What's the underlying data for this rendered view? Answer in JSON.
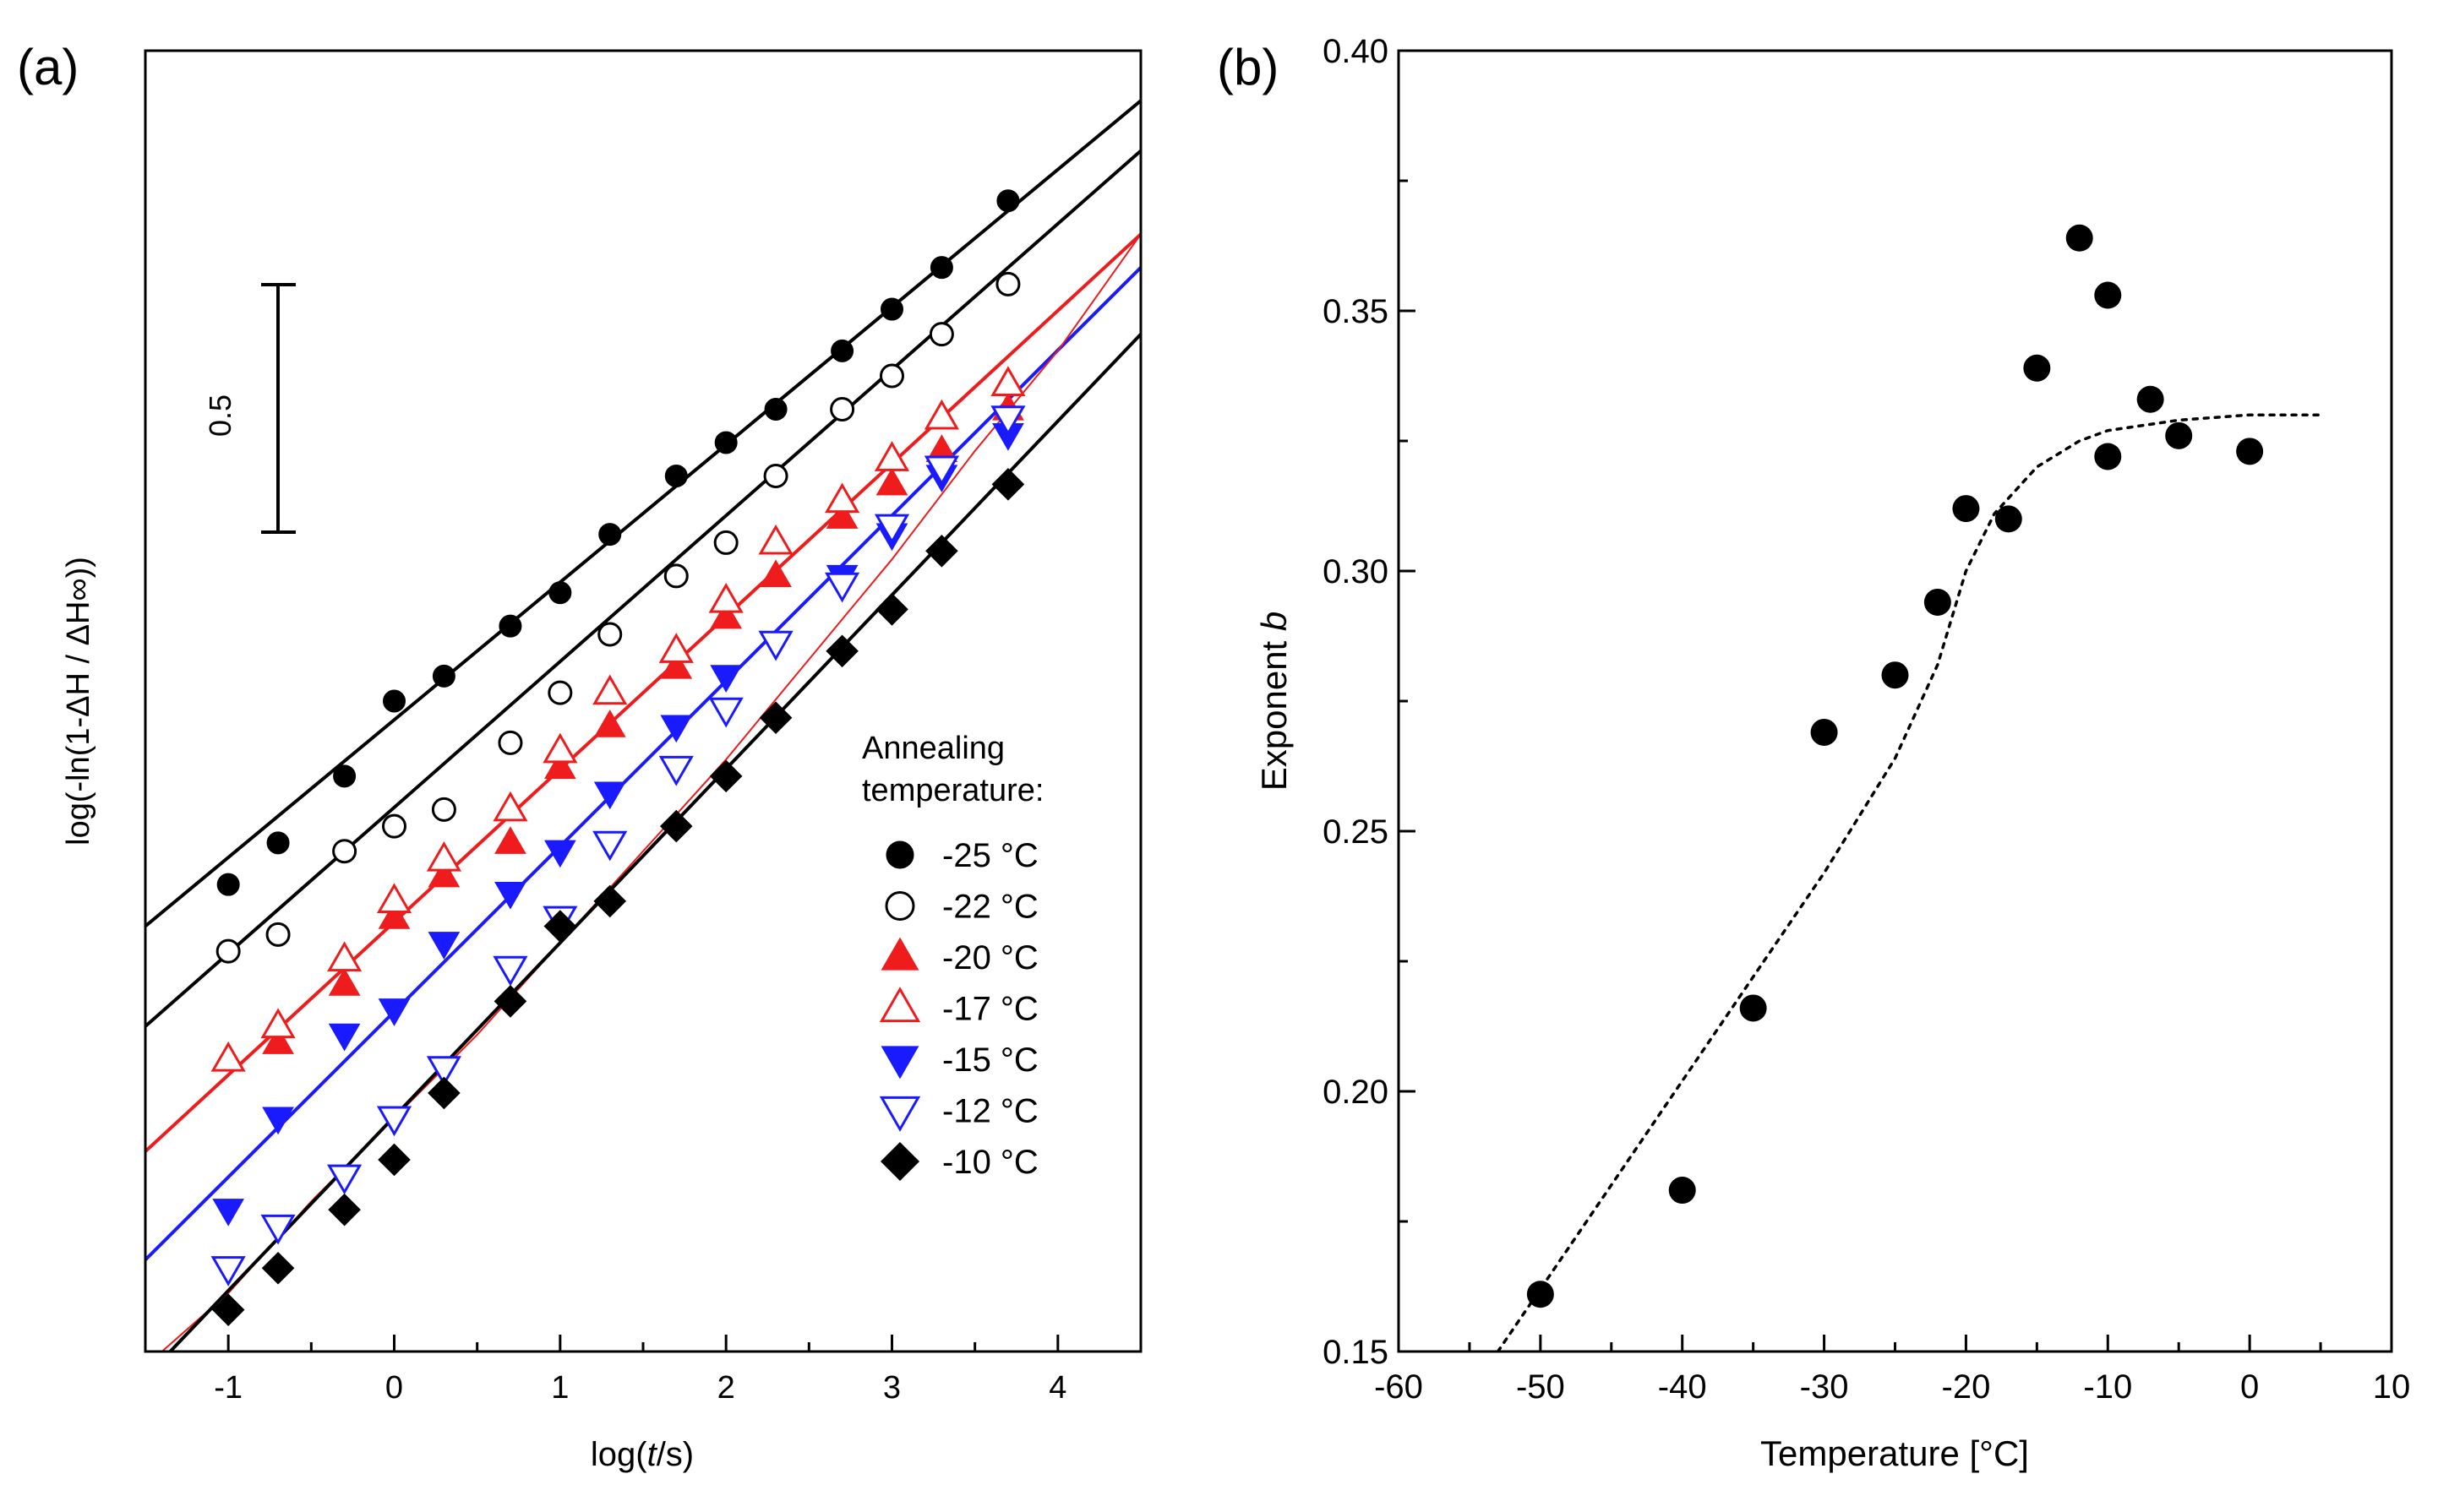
{
  "colors": {
    "black": "#000000",
    "red": "#ee1c1c",
    "blue": "#1a1aff"
  },
  "panel_a": {
    "label": "(a)",
    "xlabel_prefix": "log(",
    "xlabel_italic": "t",
    "xlabel_suffix": "/s)",
    "ylabel": "log(-ln(1-ΔH / ΔH∞))",
    "scalebar_label": "0.5",
    "legend_title_1": "Annealing",
    "legend_title_2": "temperature:"
  },
  "panel_b": {
    "label": "(b)",
    "xlabel": "Temperature [°C]",
    "ylabel_text": "Exponent ",
    "ylabel_italic": "b"
  },
  "chart_data": [
    {
      "panel": "a",
      "type": "scatter",
      "xlabel": "log(t/s)",
      "ylabel": "log(-ln(1-ΔH / ΔH∞))",
      "xlim": [
        -1.5,
        4.5
      ],
      "ylim": [
        0,
        1.56
      ],
      "xticks": [
        -1,
        0,
        1,
        2,
        3,
        4
      ],
      "yticks_labeled": false,
      "scale_bar": {
        "value": 0.5,
        "label": "0.5"
      },
      "legend_title": "Annealing temperature:",
      "series": [
        {
          "name": "-25 °C",
          "marker": "circle",
          "filled": true,
          "color": "#000000",
          "x": [
            -1,
            -0.7,
            -0.3,
            0,
            0.3,
            0.7,
            1,
            1.3,
            1.7,
            2,
            2.3,
            2.7,
            3,
            3.3,
            3.7
          ],
          "y": [
            0.56,
            0.61,
            0.69,
            0.78,
            0.81,
            0.87,
            0.91,
            0.98,
            1.05,
            1.09,
            1.13,
            1.2,
            1.25,
            1.3,
            1.38
          ],
          "fit": {
            "kind": "line",
            "x": [
              -1.5,
              4.5
            ],
            "y": [
              0.51,
              1.5
            ],
            "color": "#000000"
          }
        },
        {
          "name": "-22 °C",
          "marker": "circle",
          "filled": false,
          "color": "#000000",
          "x": [
            -1,
            -0.7,
            -0.3,
            0,
            0.3,
            0.7,
            1,
            1.3,
            1.7,
            2,
            2.3,
            2.7,
            3,
            3.3,
            3.7
          ],
          "y": [
            0.48,
            0.5,
            0.6,
            0.63,
            0.65,
            0.73,
            0.79,
            0.86,
            0.93,
            0.97,
            1.05,
            1.13,
            1.17,
            1.22,
            1.28
          ],
          "fit": {
            "kind": "line",
            "x": [
              -1.5,
              4.5
            ],
            "y": [
              0.39,
              1.44
            ],
            "color": "#000000"
          }
        },
        {
          "name": "-20 °C",
          "marker": "triangle-up",
          "filled": true,
          "color": "#ee1c1c",
          "x": [
            -0.7,
            -0.3,
            0,
            0.3,
            0.7,
            1,
            1.3,
            1.7,
            2,
            2.3,
            2.7,
            3,
            3.3,
            3.7
          ],
          "y": [
            0.37,
            0.44,
            0.52,
            0.57,
            0.61,
            0.7,
            0.75,
            0.82,
            0.88,
            0.93,
            1.0,
            1.04,
            1.08,
            1.13
          ],
          "fit": {
            "kind": "line",
            "x": [
              -1.5,
              4.5
            ],
            "y": [
              0.24,
              1.34
            ],
            "color": "#ee1c1c"
          }
        },
        {
          "name": "-17 °C",
          "marker": "triangle-up",
          "filled": false,
          "color": "#ee1c1c",
          "x": [
            -1,
            -0.7,
            -0.3,
            0,
            0.3,
            0.7,
            1,
            1.3,
            1.7,
            2,
            2.3,
            2.7,
            3,
            3.3,
            3.7
          ],
          "y": [
            0.35,
            0.39,
            0.47,
            0.54,
            0.59,
            0.65,
            0.72,
            0.79,
            0.84,
            0.9,
            0.97,
            1.02,
            1.07,
            1.12,
            1.16
          ],
          "fit": null
        },
        {
          "name": "-15 °C",
          "marker": "triangle-down",
          "filled": true,
          "color": "#1a1aff",
          "x": [
            -1,
            -0.7,
            -0.3,
            0,
            0.3,
            0.7,
            1,
            1.3,
            1.7,
            2,
            2.3,
            2.7,
            3,
            3.3,
            3.7
          ],
          "y": [
            0.17,
            0.28,
            0.38,
            0.41,
            0.49,
            0.55,
            0.6,
            0.67,
            0.75,
            0.81,
            0.85,
            0.93,
            0.98,
            1.05,
            1.1
          ],
          "fit": {
            "kind": "line",
            "x": [
              -1.5,
              4.5
            ],
            "y": [
              0.11,
              1.3
            ],
            "color": "#1a1aff"
          }
        },
        {
          "name": "-12 °C",
          "marker": "triangle-down",
          "filled": false,
          "color": "#1a1aff",
          "x": [
            -1,
            -0.7,
            -0.3,
            0,
            0.3,
            0.7,
            1,
            1.3,
            1.7,
            2,
            2.3,
            2.7,
            3,
            3.3,
            3.7
          ],
          "y": [
            0.1,
            0.15,
            0.21,
            0.28,
            0.34,
            0.46,
            0.52,
            0.61,
            0.7,
            0.77,
            0.85,
            0.92,
            0.99,
            1.06,
            1.12
          ],
          "fit": {
            "kind": "curve",
            "x": [
              -1.4,
              -1.0,
              -0.5,
              0,
              0.5,
              1,
              1.5,
              2,
              2.5,
              3,
              3.5,
              4.0,
              4.5
            ],
            "y": [
              0.0,
              0.07,
              0.18,
              0.28,
              0.38,
              0.49,
              0.6,
              0.71,
              0.83,
              0.95,
              1.08,
              1.2,
              1.34
            ],
            "color": "#ee1c1c"
          }
        },
        {
          "name": "-10 °C",
          "marker": "diamond",
          "filled": true,
          "color": "#000000",
          "x": [
            -1,
            -0.7,
            -0.3,
            0,
            0.3,
            0.7,
            1,
            1.3,
            1.7,
            2,
            2.3,
            2.7,
            3,
            3.3,
            3.7
          ],
          "y": [
            0.05,
            0.1,
            0.17,
            0.23,
            0.31,
            0.42,
            0.51,
            0.54,
            0.63,
            0.69,
            0.76,
            0.84,
            0.89,
            0.96,
            1.04
          ],
          "fit": {
            "kind": "line",
            "x": [
              -1.35,
              4.5
            ],
            "y": [
              0.0,
              1.22
            ],
            "color": "#000000"
          }
        }
      ]
    },
    {
      "panel": "b",
      "type": "scatter",
      "xlabel": "Temperature [°C]",
      "ylabel": "Exponent b",
      "xlim": [
        -60,
        10
      ],
      "ylim": [
        0.15,
        0.4
      ],
      "xticks": [
        -60,
        -50,
        -40,
        -30,
        -20,
        -10,
        0,
        10
      ],
      "yticks": [
        0.15,
        0.2,
        0.25,
        0.3,
        0.35,
        0.4
      ],
      "x": [
        -50,
        -40,
        -35,
        -30,
        -25,
        -22,
        -20,
        -17,
        -15,
        -12,
        -10,
        -10,
        -7,
        -5,
        0
      ],
      "y": [
        0.161,
        0.181,
        0.216,
        0.269,
        0.28,
        0.294,
        0.312,
        0.31,
        0.339,
        0.364,
        0.353,
        0.322,
        0.333,
        0.326,
        0.323
      ],
      "fit": {
        "style": "dotted",
        "x": [
          -53,
          -50,
          -45,
          -40,
          -35,
          -30,
          -25,
          -22,
          -20,
          -18,
          -15,
          -12,
          -10,
          -5,
          0,
          5
        ],
        "y": [
          0.15,
          0.162,
          0.182,
          0.202,
          0.222,
          0.242,
          0.264,
          0.282,
          0.3,
          0.311,
          0.32,
          0.325,
          0.327,
          0.329,
          0.33,
          0.33
        ]
      }
    }
  ]
}
